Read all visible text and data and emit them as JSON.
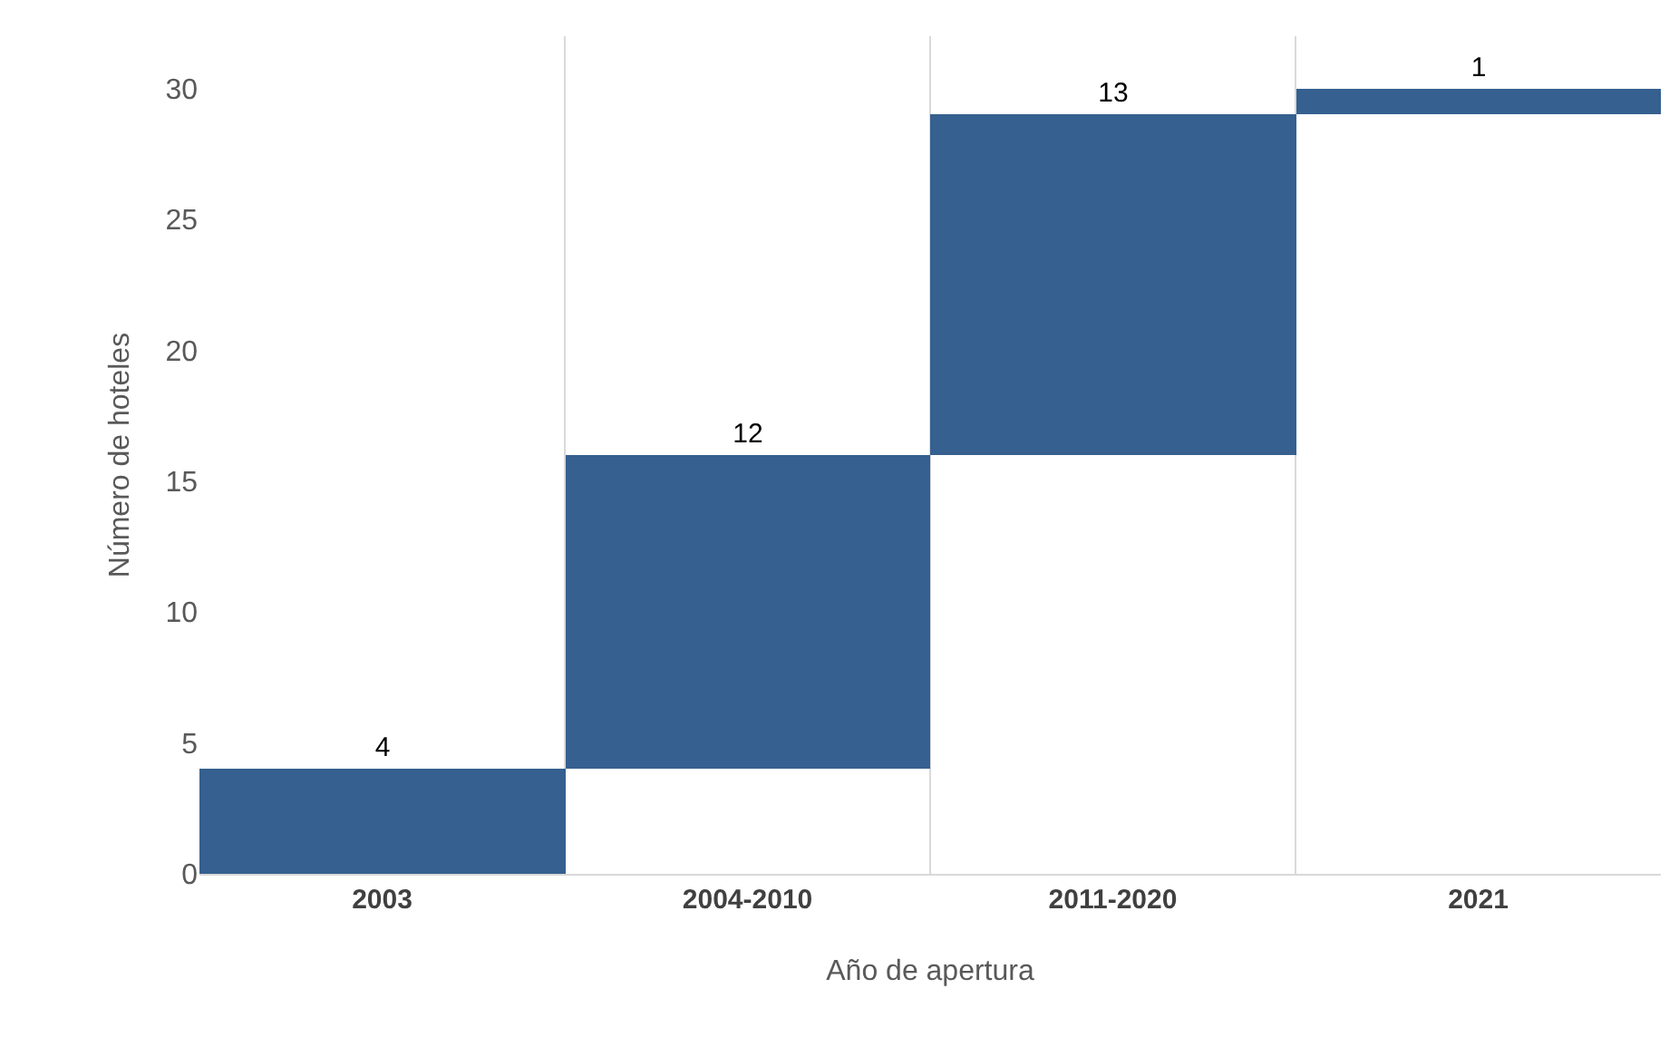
{
  "chart_data": {
    "type": "bar",
    "xlabel": "Año de apertura",
    "ylabel": "Número de hoteles",
    "categories": [
      "2003",
      "2004-2010",
      "2011-2020",
      "2021"
    ],
    "values": [
      4,
      12,
      13,
      1
    ],
    "base": [
      0,
      4,
      16,
      29
    ],
    "color": "#35608f",
    "ylim": [
      0,
      32
    ],
    "yticks": [
      0,
      5,
      10,
      15,
      20,
      25,
      30
    ],
    "grid": "x",
    "data_labels": true
  }
}
